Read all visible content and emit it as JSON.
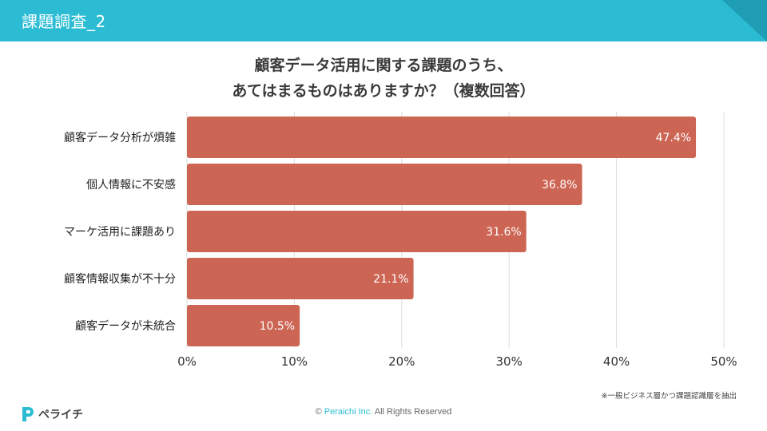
{
  "header": {
    "title": "課題調査_2"
  },
  "colors": {
    "header": "#2bbcd4",
    "header_dark": "#1f9db4",
    "bar": "#cd6554",
    "grid": "#dddddd",
    "text": "#333333"
  },
  "chart_data": {
    "type": "bar",
    "orientation": "horizontal",
    "title_lines": [
      "顧客データ活用に関する課題のうち、",
      "あてはまるものはありますか？（複数回答）"
    ],
    "categories": [
      "顧客データ分析が煩雑",
      "個人情報に不安感",
      "マーケ活用に課題あり",
      "顧客情報収集が不十分",
      "顧客データが未統合"
    ],
    "values": [
      47.4,
      36.8,
      31.6,
      21.1,
      10.5
    ],
    "value_labels": [
      "47.4%",
      "36.8%",
      "31.6%",
      "21.1%",
      "10.5%"
    ],
    "xlim": [
      0,
      50
    ],
    "ticks": [
      0,
      10,
      20,
      30,
      40,
      50
    ],
    "tick_labels": [
      "0%",
      "10%",
      "20%",
      "30%",
      "40%",
      "50%"
    ],
    "grid": true
  },
  "footnote": "※一般ビジネス層かつ課題認識層を抽出",
  "logo": {
    "text": "ペライチ",
    "icon": "peraichi-logo-icon"
  },
  "copyright": {
    "symbol": "©",
    "company": "Peraichi Inc.",
    "rights": "All Rights Reserved"
  }
}
